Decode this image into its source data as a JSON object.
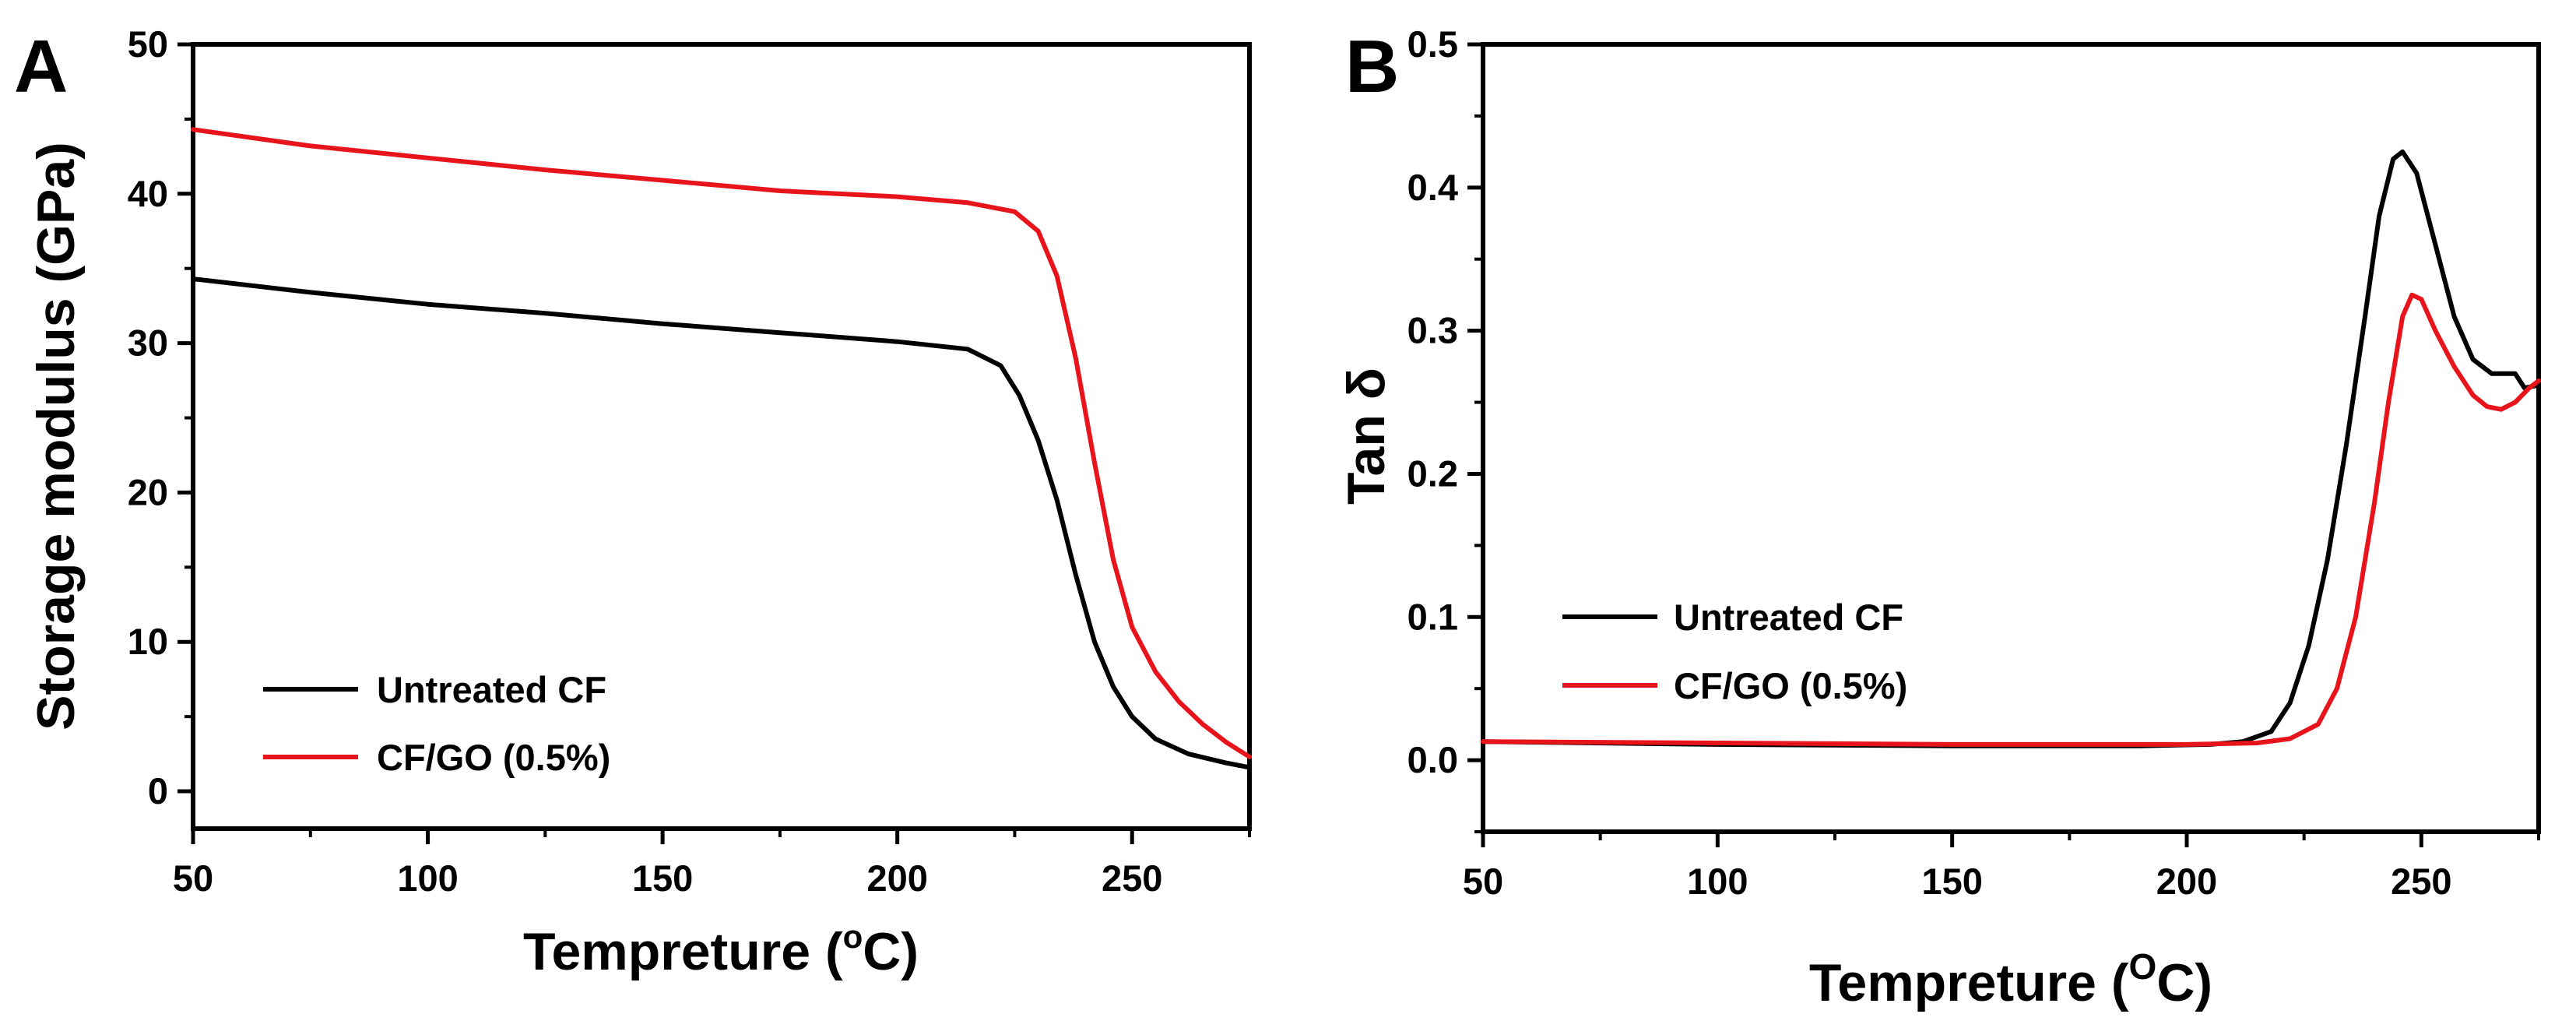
{
  "chart_data": [
    {
      "panel_label": "A",
      "type": "line",
      "xlabel": "Tempreture",
      "xunit_open": "(",
      "xunit_deg": "o",
      "xunit_close": "C)",
      "ylabel": "Storage modulus (GPa)",
      "xlim": [
        50,
        275
      ],
      "ylim": [
        -2.5,
        50
      ],
      "xticks": [
        50,
        100,
        150,
        200,
        250
      ],
      "yticks": [
        0,
        10,
        20,
        30,
        40,
        50
      ],
      "legend_position": "bottom-left",
      "series": [
        {
          "name": "Untreated CF",
          "color": "#000000",
          "points": [
            [
              50,
              34.3
            ],
            [
              75,
              33.4
            ],
            [
              100,
              32.6
            ],
            [
              125,
              32.0
            ],
            [
              150,
              31.3
            ],
            [
              175,
              30.7
            ],
            [
              200,
              30.1
            ],
            [
              215,
              29.6
            ],
            [
              222,
              28.5
            ],
            [
              226,
              26.5
            ],
            [
              230,
              23.5
            ],
            [
              234,
              19.5
            ],
            [
              238,
              14.5
            ],
            [
              242,
              10.0
            ],
            [
              246,
              7.0
            ],
            [
              250,
              5.0
            ],
            [
              255,
              3.5
            ],
            [
              262,
              2.5
            ],
            [
              270,
              1.9
            ],
            [
              275,
              1.6
            ]
          ]
        },
        {
          "name": "CF/GO (0.5%)",
          "color": "#e8141b",
          "points": [
            [
              50,
              44.3
            ],
            [
              75,
              43.2
            ],
            [
              100,
              42.4
            ],
            [
              125,
              41.6
            ],
            [
              150,
              40.9
            ],
            [
              175,
              40.2
            ],
            [
              200,
              39.8
            ],
            [
              215,
              39.4
            ],
            [
              225,
              38.8
            ],
            [
              230,
              37.5
            ],
            [
              234,
              34.5
            ],
            [
              238,
              29.0
            ],
            [
              242,
              22.0
            ],
            [
              246,
              15.5
            ],
            [
              250,
              11.0
            ],
            [
              255,
              8.0
            ],
            [
              260,
              6.0
            ],
            [
              265,
              4.5
            ],
            [
              270,
              3.3
            ],
            [
              275,
              2.3
            ]
          ]
        }
      ]
    },
    {
      "panel_label": "B",
      "type": "line",
      "xlabel": "Tempreture",
      "xunit_open": "(",
      "xunit_deg": "O",
      "xunit_close": "C)",
      "ylabel": "Tan δ",
      "xlim": [
        50,
        275
      ],
      "ylim": [
        -0.05,
        0.5
      ],
      "xticks": [
        50,
        100,
        150,
        200,
        250
      ],
      "yticks": [
        "0.0",
        "0.1",
        "0.2",
        "0.3",
        "0.4",
        "0.5"
      ],
      "legend_position": "middle-left",
      "series": [
        {
          "name": "Untreated CF",
          "color": "#000000",
          "points": [
            [
              50,
              0.013
            ],
            [
              100,
              0.011
            ],
            [
              150,
              0.01
            ],
            [
              190,
              0.01
            ],
            [
              205,
              0.011
            ],
            [
              212,
              0.013
            ],
            [
              218,
              0.02
            ],
            [
              222,
              0.04
            ],
            [
              226,
              0.08
            ],
            [
              230,
              0.14
            ],
            [
              234,
              0.22
            ],
            [
              238,
              0.31
            ],
            [
              241,
              0.38
            ],
            [
              244,
              0.42
            ],
            [
              246,
              0.425
            ],
            [
              249,
              0.41
            ],
            [
              253,
              0.36
            ],
            [
              257,
              0.31
            ],
            [
              261,
              0.28
            ],
            [
              265,
              0.27
            ],
            [
              268,
              0.27
            ],
            [
              270,
              0.27
            ],
            [
              272,
              0.26
            ],
            [
              275,
              0.262
            ]
          ]
        },
        {
          "name": "CF/GO (0.5%)",
          "color": "#e8141b",
          "points": [
            [
              50,
              0.013
            ],
            [
              100,
              0.012
            ],
            [
              150,
              0.011
            ],
            [
              200,
              0.011
            ],
            [
              215,
              0.012
            ],
            [
              222,
              0.015
            ],
            [
              228,
              0.025
            ],
            [
              232,
              0.05
            ],
            [
              236,
              0.1
            ],
            [
              240,
              0.18
            ],
            [
              243,
              0.25
            ],
            [
              246,
              0.31
            ],
            [
              248,
              0.325
            ],
            [
              250,
              0.322
            ],
            [
              253,
              0.3
            ],
            [
              257,
              0.275
            ],
            [
              261,
              0.255
            ],
            [
              264,
              0.247
            ],
            [
              267,
              0.245
            ],
            [
              270,
              0.25
            ],
            [
              273,
              0.26
            ],
            [
              275,
              0.265
            ]
          ]
        }
      ]
    }
  ]
}
